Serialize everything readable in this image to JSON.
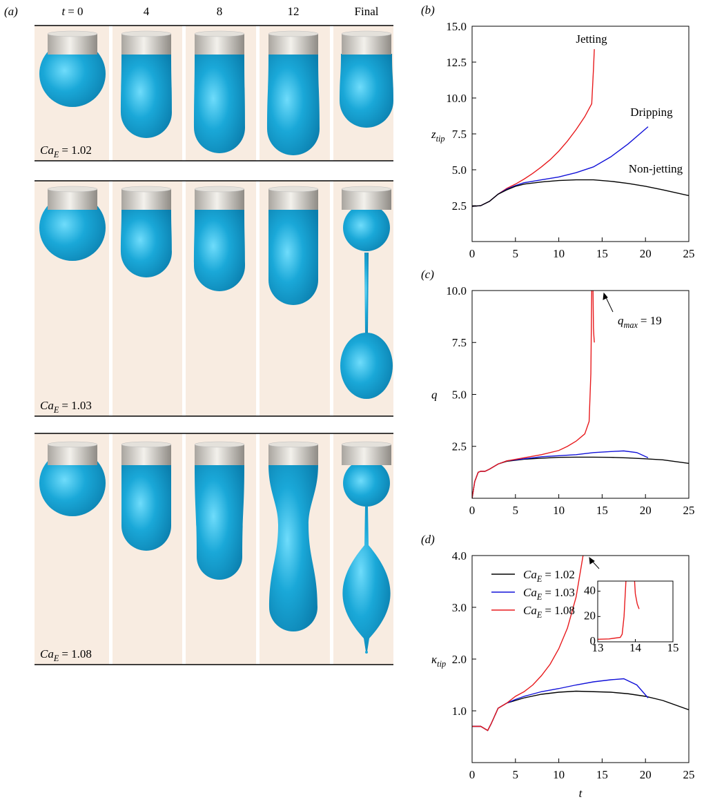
{
  "panel_a": {
    "label": "(a)",
    "columns": [
      {
        "base": "t",
        "text": "= 0"
      },
      "4",
      "8",
      "12",
      "Final"
    ],
    "rows": [
      {
        "base": "Ca",
        "sub": "E",
        "text": "= 1.02"
      },
      {
        "base": "Ca",
        "sub": "E",
        "text": "= 1.03"
      },
      {
        "base": "Ca",
        "sub": "E",
        "text": "= 1.08"
      }
    ]
  },
  "chart_data": [
    {
      "type": "line",
      "panel": "(b)",
      "ylabel": {
        "base": "z",
        "sub": "tip"
      },
      "xlim": [
        0,
        25
      ],
      "ylim": [
        0,
        15
      ],
      "xticks": [
        0,
        5,
        10,
        15,
        20,
        25
      ],
      "yticks": [
        2.5,
        {
          "value": 5.0,
          "label": "5.0"
        },
        7.5,
        {
          "value": 10.0,
          "label": "10.0"
        },
        12.5,
        {
          "value": 15.0,
          "label": "15.0"
        }
      ],
      "series": [
        {
          "name": "Jetting",
          "color": "#e8191c",
          "x": [
            0,
            1,
            2,
            3,
            4,
            5,
            6,
            7,
            8,
            9,
            10,
            11,
            12,
            13,
            13.8,
            14,
            14.1
          ],
          "values": [
            2.45,
            2.5,
            2.8,
            3.3,
            3.7,
            4.0,
            4.35,
            4.75,
            5.2,
            5.7,
            6.3,
            7.0,
            7.8,
            8.7,
            9.6,
            12.0,
            13.4
          ]
        },
        {
          "name": "Dripping",
          "color": "#1010d8",
          "x": [
            0,
            1,
            2,
            3,
            4,
            5,
            6,
            8,
            10,
            12,
            14,
            16,
            18,
            20.3
          ],
          "values": [
            2.45,
            2.5,
            2.8,
            3.3,
            3.65,
            3.9,
            4.1,
            4.3,
            4.5,
            4.8,
            5.2,
            5.9,
            6.8,
            8.0
          ]
        },
        {
          "name": "Non-jetting",
          "color": "#000000",
          "x": [
            0,
            1,
            2,
            3,
            4,
            5,
            6,
            8,
            10,
            12,
            14,
            16,
            18,
            20,
            22,
            25
          ],
          "values": [
            2.45,
            2.5,
            2.8,
            3.3,
            3.6,
            3.85,
            4.0,
            4.15,
            4.25,
            4.3,
            4.3,
            4.2,
            4.05,
            3.85,
            3.6,
            3.2
          ]
        }
      ]
    },
    {
      "type": "line",
      "panel": "(c)",
      "ylabel": {
        "base": "q"
      },
      "xlim": [
        0,
        25
      ],
      "ylim": [
        0,
        10
      ],
      "xticks": [
        0,
        5,
        10,
        15,
        20,
        25
      ],
      "yticks": [
        2.5,
        {
          "value": 5.0,
          "label": "5.0"
        },
        7.5,
        {
          "value": 10.0,
          "label": "10.0"
        }
      ],
      "annotation": {
        "base": "q",
        "sub": "max",
        "text": "= 19"
      },
      "series": [
        {
          "color": "#000000",
          "x": [
            0,
            0.3,
            0.7,
            1,
            1.5,
            2,
            3,
            4,
            6,
            8,
            10,
            12,
            14,
            16,
            18,
            20,
            22,
            25
          ],
          "values": [
            0,
            0.8,
            1.25,
            1.3,
            1.3,
            1.4,
            1.65,
            1.78,
            1.88,
            1.93,
            1.97,
            1.98,
            1.98,
            1.97,
            1.94,
            1.9,
            1.85,
            1.68
          ]
        },
        {
          "color": "#1010d8",
          "x": [
            0,
            0.3,
            0.7,
            1,
            1.5,
            2,
            3,
            4,
            6,
            8,
            10,
            12,
            14,
            16,
            17.5,
            19,
            20.3
          ],
          "values": [
            0,
            0.8,
            1.25,
            1.3,
            1.3,
            1.4,
            1.65,
            1.8,
            1.9,
            2.0,
            2.05,
            2.1,
            2.2,
            2.25,
            2.28,
            2.2,
            1.95
          ]
        },
        {
          "color": "#e8191c",
          "x": [
            0,
            0.3,
            0.7,
            1,
            1.5,
            2,
            3,
            4,
            6,
            8,
            10,
            11,
            12,
            13,
            13.5,
            13.7,
            13.8,
            13.9,
            13.95,
            14.0,
            14.05,
            14.1
          ],
          "values": [
            0,
            0.8,
            1.25,
            1.3,
            1.3,
            1.4,
            1.65,
            1.8,
            1.95,
            2.1,
            2.3,
            2.5,
            2.75,
            3.1,
            3.7,
            6.0,
            10.0,
            null,
            10.0,
            8.2,
            7.8,
            7.5
          ]
        }
      ]
    },
    {
      "type": "line",
      "panel": "(d)",
      "ylabel": {
        "base": "κ",
        "sub": "tip"
      },
      "xlabel": {
        "base": "t"
      },
      "xlim": [
        0,
        25
      ],
      "ylim": [
        0,
        4
      ],
      "xticks": [
        0,
        5,
        10,
        15,
        20,
        25
      ],
      "yticks": [
        {
          "value": 1.0,
          "label": "1.0"
        },
        {
          "value": 2.0,
          "label": "2.0"
        },
        {
          "value": 3.0,
          "label": "3.0"
        },
        {
          "value": 4.0,
          "label": "4.0"
        }
      ],
      "legend": "upper left",
      "series": [
        {
          "name": {
            "base": "Ca",
            "sub": "E",
            "text": "= 1.02"
          },
          "color": "#000000",
          "x": [
            0,
            1,
            1.5,
            1.8,
            2.2,
            3,
            4,
            5,
            6,
            8,
            10,
            12,
            14,
            16,
            18,
            20,
            22,
            25
          ],
          "values": [
            0.7,
            0.7,
            0.65,
            0.62,
            0.75,
            1.05,
            1.15,
            1.2,
            1.25,
            1.32,
            1.36,
            1.38,
            1.37,
            1.36,
            1.33,
            1.28,
            1.2,
            1.02
          ]
        },
        {
          "name": {
            "base": "Ca",
            "sub": "E",
            "text": "= 1.03"
          },
          "color": "#1010d8",
          "x": [
            0,
            1,
            1.5,
            1.8,
            2.2,
            3,
            4,
            5,
            6,
            8,
            10,
            12,
            14,
            16,
            17.5,
            19,
            20.3
          ],
          "values": [
            0.7,
            0.7,
            0.65,
            0.62,
            0.75,
            1.05,
            1.15,
            1.22,
            1.28,
            1.37,
            1.43,
            1.5,
            1.56,
            1.6,
            1.62,
            1.5,
            1.25
          ]
        },
        {
          "name": {
            "base": "Ca",
            "sub": "E",
            "text": "= 1.08"
          },
          "color": "#e8191c",
          "x": [
            0,
            1,
            1.5,
            1.8,
            2.2,
            3,
            4,
            5,
            6,
            7,
            8,
            9,
            10,
            11,
            12,
            12.8
          ],
          "values": [
            0.7,
            0.7,
            0.65,
            0.62,
            0.75,
            1.05,
            1.15,
            1.28,
            1.37,
            1.5,
            1.68,
            1.9,
            2.2,
            2.6,
            3.2,
            4.0
          ]
        }
      ]
    },
    {
      "type": "line",
      "xlim": [
        13,
        15
      ],
      "ylim": [
        0,
        48
      ],
      "xticks": [
        13,
        14,
        15
      ],
      "yticks": [
        0,
        20,
        40
      ],
      "series": [
        {
          "color": "#e8191c",
          "x": [
            13,
            13.3,
            13.6,
            13.65,
            13.7,
            13.75,
            13.85,
            13.98,
            14.0,
            14.05,
            14.1
          ],
          "values": [
            2,
            2.3,
            3.5,
            6,
            20,
            48,
            null,
            48,
            38,
            30,
            26
          ]
        }
      ]
    }
  ]
}
